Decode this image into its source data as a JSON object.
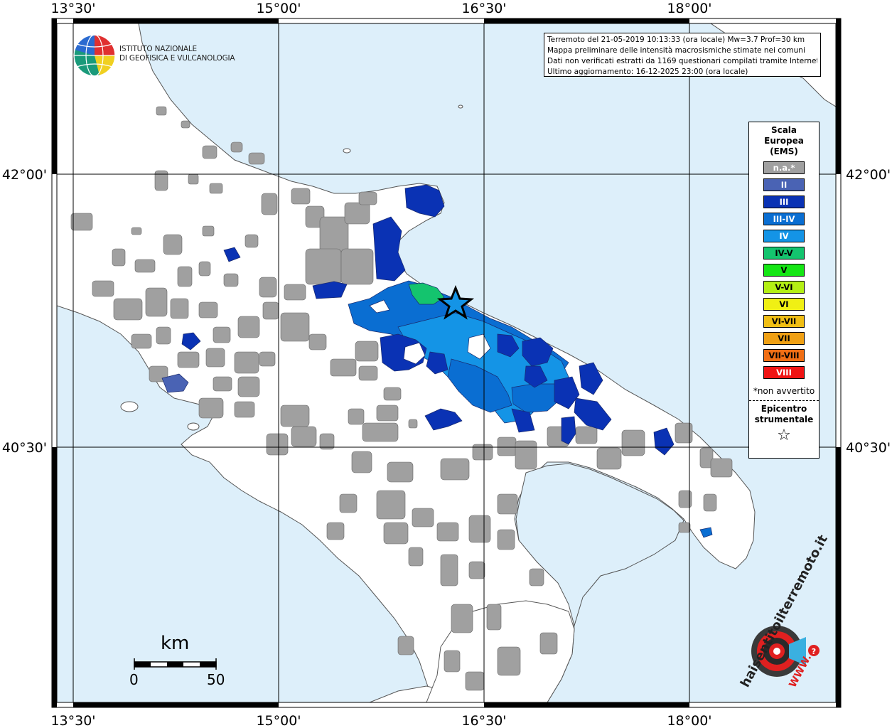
{
  "map": {
    "lon_labels": [
      "13°30'",
      "15°00'",
      "16°30'",
      "18°00'"
    ],
    "lat_labels": [
      "42°00'",
      "40°30'"
    ],
    "colors": {
      "sea": "#ddeffa",
      "land": "#ffffff",
      "na": "#a0a0a0",
      "ii": "#4a63b4",
      "iii": "#0a32b4",
      "iii_iv": "#0a6ed2",
      "iv": "#1494e6",
      "iv_v": "#14c46e",
      "v": "#14e614",
      "v_vi": "#b4f014",
      "vi": "#f0f014",
      "vi_vii": "#f0be14",
      "vii": "#f0a014",
      "vii_viii": "#f06e14",
      "viii": "#f01414"
    }
  },
  "info": {
    "line1": "Terremoto del 21-05-2019 10:13:33 (ora locale) Mw=3.7 Prof=30 km",
    "line2": "Mappa preliminare delle intensità macrosismiche stimate nei comuni",
    "line3": "Dati non verificati estratti da 1169 questionari compilati tramite Internet.",
    "line4": "Ultimo aggiornamento: 16-12-2025 23:00 (ora locale)"
  },
  "logo": {
    "line1": "ISTITUTO NAZIONALE",
    "line2": "DI GEOFISICA E VULCANOLOGIA"
  },
  "legend": {
    "title1": "Scala",
    "title2": "Europea",
    "title3": "(EMS)",
    "items": [
      {
        "label": "n.a.*",
        "color": "#a0a0a0",
        "text_color": "#ffffff"
      },
      {
        "label": "II",
        "color": "#4a63b4",
        "text_color": "#ffffff"
      },
      {
        "label": "III",
        "color": "#0a32b4",
        "text_color": "#ffffff"
      },
      {
        "label": "III-IV",
        "color": "#0a6ed2",
        "text_color": "#ffffff"
      },
      {
        "label": "IV",
        "color": "#1494e6",
        "text_color": "#ffffff"
      },
      {
        "label": "IV-V",
        "color": "#14c46e",
        "text_color": "#000000"
      },
      {
        "label": "V",
        "color": "#14e614",
        "text_color": "#000000"
      },
      {
        "label": "V-VI",
        "color": "#b4f014",
        "text_color": "#000000"
      },
      {
        "label": "VI",
        "color": "#f0f014",
        "text_color": "#000000"
      },
      {
        "label": "VI-VII",
        "color": "#f0be14",
        "text_color": "#000000"
      },
      {
        "label": "VII",
        "color": "#f0a014",
        "text_color": "#000000"
      },
      {
        "label": "VII-VIII",
        "color": "#f06e14",
        "text_color": "#000000"
      },
      {
        "label": "VIII",
        "color": "#f01414",
        "text_color": "#ffffff"
      }
    ],
    "note": "*non avvertito",
    "epicentro1": "Epicentro",
    "epicentro2": "strumentale",
    "star": "☆"
  },
  "scale_bar": {
    "unit": "km",
    "min": "0",
    "max": "50"
  },
  "badge": {
    "text_top": "haisentitoilterremoto.it",
    "text_bottom": "WWW."
  }
}
